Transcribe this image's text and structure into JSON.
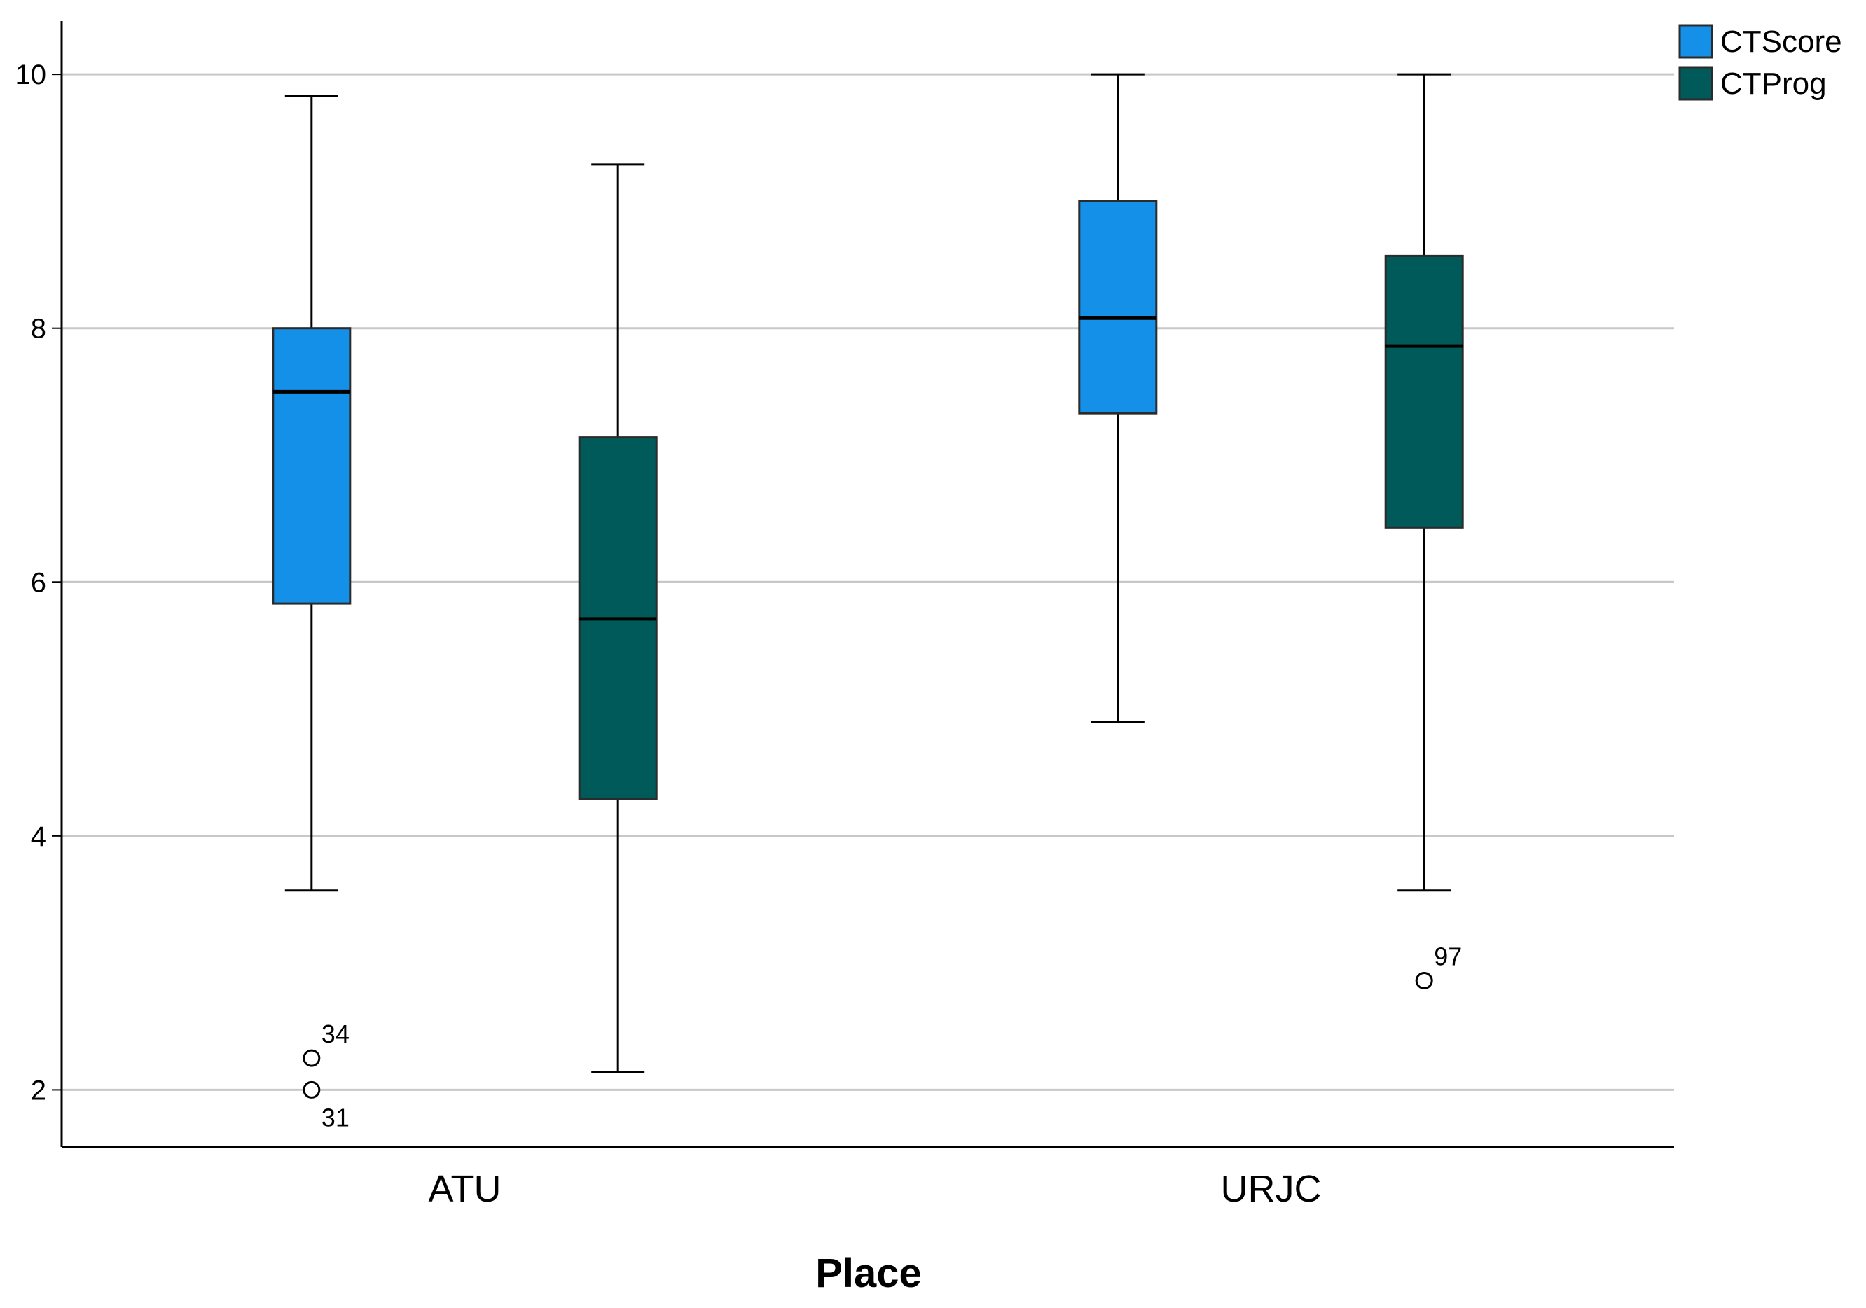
{
  "chart_data": {
    "type": "boxplot",
    "title": "",
    "xlabel": "Place",
    "ylabel": "",
    "ylim": [
      1.55,
      10.42
    ],
    "yticks": [
      2,
      4,
      6,
      8,
      10
    ],
    "grid": true,
    "legend_position": "top-right",
    "categories": [
      "ATU",
      "URJC"
    ],
    "series": [
      {
        "name": "CTScore",
        "color": "#1590E8",
        "boxes": [
          {
            "category": "ATU",
            "whisker_low": 3.57,
            "q1": 5.83,
            "median": 7.5,
            "q3": 8.0,
            "whisker_high": 9.83
          },
          {
            "category": "URJC",
            "whisker_low": 4.9,
            "q1": 7.33,
            "median": 8.08,
            "q3": 9.0,
            "whisker_high": 10.0
          }
        ]
      },
      {
        "name": "CTProg",
        "color": "#015A5A",
        "boxes": [
          {
            "category": "ATU",
            "whisker_low": 2.14,
            "q1": 4.29,
            "median": 5.71,
            "q3": 7.14,
            "whisker_high": 9.29
          },
          {
            "category": "URJC",
            "whisker_low": 3.57,
            "q1": 6.43,
            "median": 7.86,
            "q3": 8.57,
            "whisker_high": 10.0
          }
        ]
      }
    ],
    "outliers": [
      {
        "series": "CTScore",
        "category": "ATU",
        "value": 2.25,
        "label": "34"
      },
      {
        "series": "CTScore",
        "category": "ATU",
        "value": 2.0,
        "label": "31"
      },
      {
        "series": "CTProg",
        "category": "URJC",
        "value": 2.86,
        "label": "97"
      }
    ]
  }
}
